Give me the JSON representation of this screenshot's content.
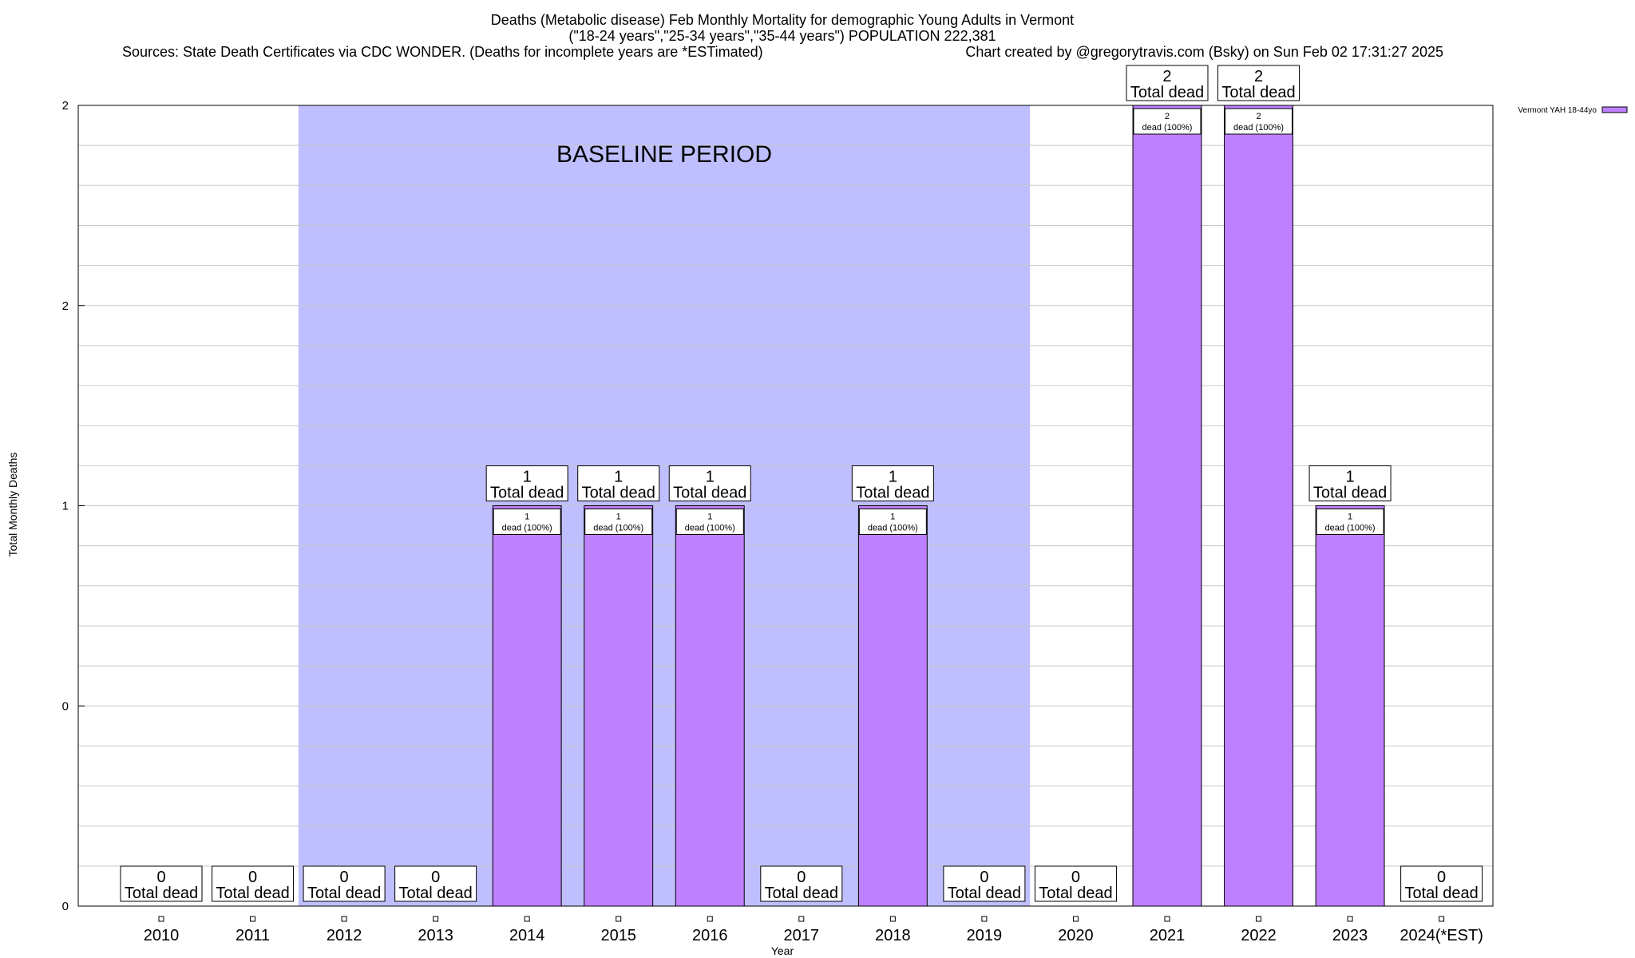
{
  "chart_data": {
    "type": "bar",
    "title_lines": [
      "Deaths (Metabolic disease) Feb Monthly Mortality for demographic Young Adults in Vermont",
      "(\"18-24 years\",\"25-34 years\",\"35-44 years\") POPULATION 222,381"
    ],
    "sources": "Sources: State Death Certificates via CDC WONDER. (Deaths for incomplete years are *ESTimated)",
    "credit": "Chart created by @gregorytravis.com (Bsky) on Sun Feb 02 17:31:27 2025",
    "xlabel": "Year",
    "ylabel": "Total Monthly Deaths",
    "categories": [
      "2010",
      "2011",
      "2012",
      "2013",
      "2014",
      "2015",
      "2016",
      "2017",
      "2018",
      "2019",
      "2020",
      "2021",
      "2022",
      "2023",
      "2024(*EST)"
    ],
    "series": [
      {
        "name": "Vermont YAH 18-44yo",
        "values": [
          0,
          0,
          0,
          0,
          1,
          1,
          1,
          0,
          1,
          0,
          0,
          2,
          2,
          1,
          0
        ]
      }
    ],
    "total_label": "Total dead",
    "inner_label_suffix": "dead (100%)",
    "y_tick_labels": [
      "0",
      "0",
      "1",
      "2",
      "2"
    ],
    "ylim": [
      0,
      2
    ],
    "baseline": {
      "label": "BASELINE PERIOD",
      "start": "2012",
      "end": "2019"
    },
    "colors": {
      "bar": "#bf80ff",
      "baseline": "#bfbfff",
      "grid": "#c8c8c8"
    },
    "grid": true,
    "legend_position": "top-right"
  }
}
